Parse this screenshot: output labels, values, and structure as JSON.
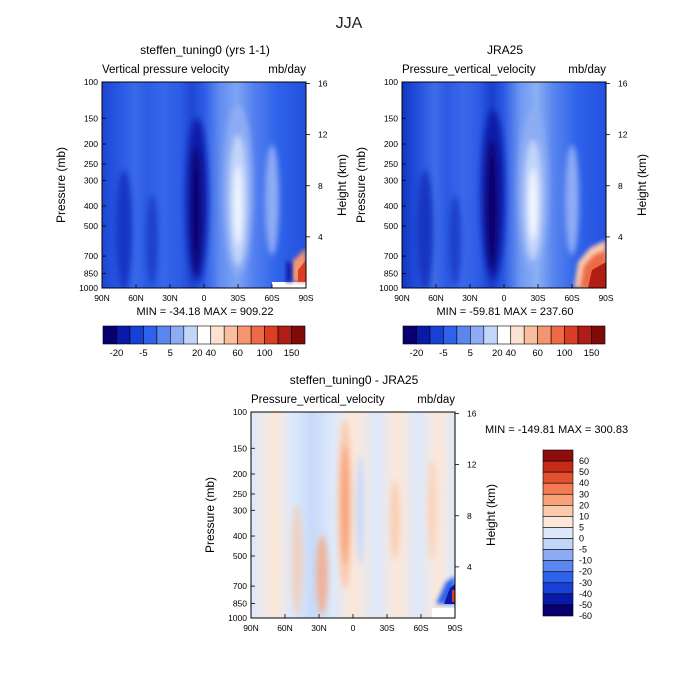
{
  "figure_title": "JJA",
  "colors": {
    "ramp_blue_to_red": [
      "#08006e",
      "#0a1aa8",
      "#1640d6",
      "#2f62ea",
      "#5a86f0",
      "#8eacf4",
      "#c2d6fa",
      "#ffffff",
      "#fde2d2",
      "#f9bea0",
      "#f4956f",
      "#ec6a46",
      "#dc3e25",
      "#b01d15",
      "#7e0a0a"
    ],
    "diff_ramp": [
      "#08006e",
      "#0a1aa8",
      "#1640d6",
      "#2f62ea",
      "#5a86f0",
      "#8eacf4",
      "#c2d6fa",
      "#dde9fb",
      "#fde7d8",
      "#fbc9ab",
      "#f8a27a",
      "#f27b52",
      "#e3502f",
      "#c52b18",
      "#8e0e0e"
    ]
  },
  "chart_data": [
    {
      "id": "model",
      "type": "heatmap",
      "title": "steffen_tuning0 (yrs 1-1)",
      "subtitle_left": "Vertical pressure velocity",
      "subtitle_right": "mb/day",
      "ylabel": "Pressure (mb)",
      "y2label": "Height (km)",
      "xticks": [
        "90N",
        "60N",
        "30N",
        "0",
        "30S",
        "60S",
        "90S"
      ],
      "yticks": [
        "100",
        "150",
        "200",
        "250",
        "300",
        "400",
        "500",
        "700",
        "850",
        "1000"
      ],
      "y2ticks": [
        "16",
        "12",
        "8",
        "4"
      ],
      "ylog": true,
      "stats": "MIN = -34.18   MAX = 909.22",
      "colorbar_labels": [
        "-20",
        "-5",
        "5",
        "20",
        "40",
        "60",
        "100",
        "150"
      ],
      "colorbar_orientation": "horizontal"
    },
    {
      "id": "obs",
      "type": "heatmap",
      "title": "JRA25",
      "subtitle_left": "Pressure_vertical_velocity",
      "subtitle_right": "mb/day",
      "ylabel": "Pressure (mb)",
      "y2label": "Height (km)",
      "xticks": [
        "90N",
        "60N",
        "30N",
        "0",
        "30S",
        "60S",
        "90S"
      ],
      "yticks": [
        "100",
        "150",
        "200",
        "250",
        "300",
        "400",
        "500",
        "700",
        "850",
        "1000"
      ],
      "y2ticks": [
        "16",
        "12",
        "8",
        "4"
      ],
      "ylog": true,
      "stats": "MIN = -59.81   MAX = 237.60",
      "colorbar_labels": [
        "-20",
        "-5",
        "5",
        "20",
        "40",
        "60",
        "100",
        "150"
      ],
      "colorbar_orientation": "horizontal"
    },
    {
      "id": "diff",
      "type": "heatmap",
      "title": "steffen_tuning0 - JRA25",
      "subtitle_left": "Pressure_vertical_velocity",
      "subtitle_right": "mb/day",
      "ylabel": "Pressure (mb)",
      "y2label": "Height (km)",
      "xticks": [
        "90N",
        "60N",
        "30N",
        "0",
        "30S",
        "60S",
        "90S"
      ],
      "yticks": [
        "100",
        "150",
        "200",
        "250",
        "300",
        "400",
        "500",
        "700",
        "850",
        "1000"
      ],
      "y2ticks": [
        "16",
        "12",
        "8",
        "4"
      ],
      "ylog": true,
      "stats": "MIN = -149.81   MAX = 300.83",
      "colorbar_labels": [
        "60",
        "50",
        "40",
        "30",
        "20",
        "10",
        "5",
        "0",
        "-5",
        "-10",
        "-20",
        "-30",
        "-40",
        "-50",
        "-60"
      ],
      "colorbar_orientation": "vertical"
    }
  ]
}
